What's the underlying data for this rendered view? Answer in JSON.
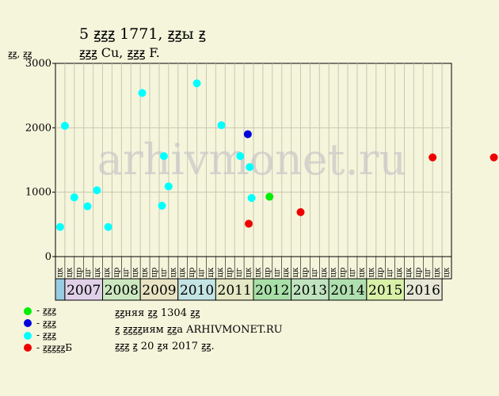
{
  "header": {
    "title": "5 ꙃꙃꙃ 1771, ꙃꙃы ꙃ",
    "subtitle": "ꙃꙃꙃ Cu, ꙃꙃꙃ F."
  },
  "legend": [
    {
      "label": "- ꙃꙃꙃ",
      "color": "#00ee00"
    },
    {
      "label": "- ꙃꙃꙃ",
      "color": "#0000dd"
    },
    {
      "label": "- ꙃꙃꙃ",
      "color": "#00ffff"
    },
    {
      "label": "- ꙃꙃꙃꙃꙃБ",
      "color": "#ee0000"
    }
  ],
  "info": [
    "ꙃꙃняя ꙃꙃ 1304 ꙃꙃ",
    "ꙃ ꙃꙃꙃꙃиям ꙃꙃа ARHIVMONET.RU",
    "ꙃꙃꙃ ꙃ 20 ꙃя 2017 ꙃꙃ."
  ],
  "watermark": "arhivmonet.ru",
  "chart_data": {
    "type": "scatter",
    "ylabel": "ꙃꙃ, ꙃꙃ",
    "ylim": [
      0,
      3000
    ],
    "yticks": [
      0,
      1000,
      2000,
      3000
    ],
    "grid": true,
    "slots": [
      "цк",
      "цк",
      "цр",
      "цг",
      "цк",
      "цк",
      "цр",
      "цг",
      "цк",
      "цк",
      "цр",
      "цг",
      "цк",
      "цк",
      "цр",
      "цг",
      "цк",
      "цк",
      "цр",
      "цг",
      "цк",
      "цк",
      "цр",
      "цг",
      "цк",
      "цк",
      "цр",
      "цг",
      "цк",
      "цк",
      "цр",
      "цг",
      "цк",
      "цк",
      "цр",
      "цг",
      "цк",
      "цк",
      "цр",
      "цг",
      "цк",
      "цк"
    ],
    "years": [
      {
        "label": "",
        "span": 1,
        "color": "#99cce0"
      },
      {
        "label": "2007",
        "span": 4,
        "color": "#e0d0e8"
      },
      {
        "label": "2008",
        "span": 4,
        "color": "#cce8c0"
      },
      {
        "label": "2009",
        "span": 4,
        "color": "#e8e4c4"
      },
      {
        "label": "2010",
        "span": 4,
        "color": "#c4e4e4"
      },
      {
        "label": "2011",
        "span": 4,
        "color": "#e4e8c4"
      },
      {
        "label": "2012",
        "span": 4,
        "color": "#a8e0a8"
      },
      {
        "label": "2013",
        "span": 4,
        "color": "#c0e4c0"
      },
      {
        "label": "2014",
        "span": 4,
        "color": "#b0e0b0"
      },
      {
        "label": "2015",
        "span": 4,
        "color": "#d8f0a8"
      },
      {
        "label": "2016",
        "span": 4,
        "color": "#e8e8d8"
      }
    ],
    "series": [
      {
        "color": "#00ffff",
        "points": [
          [
            0,
            460
          ],
          [
            0.5,
            2030
          ],
          [
            1.5,
            920
          ],
          [
            2.9,
            780
          ],
          [
            3.9,
            1030
          ],
          [
            5.1,
            460
          ],
          [
            8.7,
            2540
          ],
          [
            10.8,
            790
          ],
          [
            11.0,
            1560
          ],
          [
            11.5,
            1090
          ],
          [
            14.5,
            2690
          ],
          [
            17.1,
            2040
          ],
          [
            19.1,
            1560
          ],
          [
            20.1,
            1390
          ],
          [
            20.3,
            910
          ]
        ]
      },
      {
        "color": "#0000dd",
        "points": [
          [
            19.9,
            1900
          ]
        ]
      },
      {
        "color": "#00ee00",
        "points": [
          [
            22.2,
            930
          ]
        ]
      },
      {
        "color": "#ee0000",
        "points": [
          [
            20.0,
            510
          ],
          [
            25.5,
            690
          ],
          [
            39.5,
            1540
          ],
          [
            46.0,
            1540
          ]
        ]
      }
    ]
  }
}
